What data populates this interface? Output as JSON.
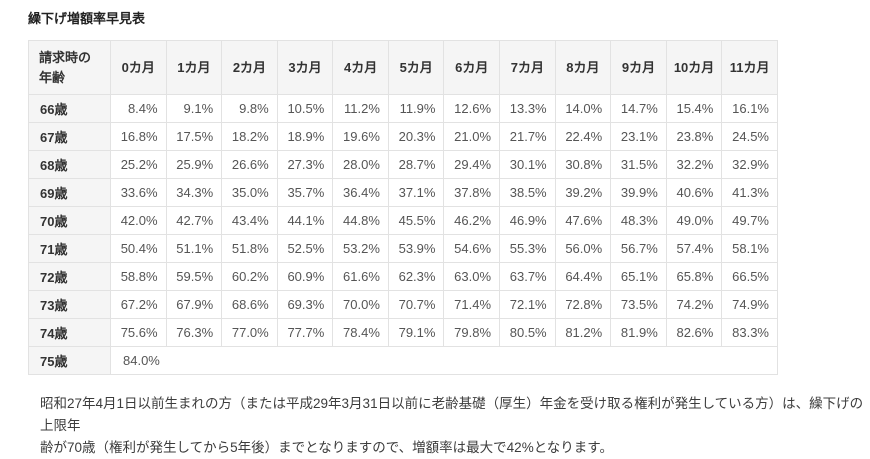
{
  "title": "繰下げ増額率早見表",
  "table": {
    "corner_header": "請求時の年齢",
    "month_headers": [
      "0カ月",
      "1カ月",
      "2カ月",
      "3カ月",
      "4カ月",
      "5カ月",
      "6カ月",
      "7カ月",
      "8カ月",
      "9カ月",
      "10カ月",
      "11カ月"
    ],
    "rows": [
      {
        "age": "66歳",
        "values": [
          "8.4%",
          "9.1%",
          "9.8%",
          "10.5%",
          "11.2%",
          "11.9%",
          "12.6%",
          "13.3%",
          "14.0%",
          "14.7%",
          "15.4%",
          "16.1%"
        ]
      },
      {
        "age": "67歳",
        "values": [
          "16.8%",
          "17.5%",
          "18.2%",
          "18.9%",
          "19.6%",
          "20.3%",
          "21.0%",
          "21.7%",
          "22.4%",
          "23.1%",
          "23.8%",
          "24.5%"
        ]
      },
      {
        "age": "68歳",
        "values": [
          "25.2%",
          "25.9%",
          "26.6%",
          "27.3%",
          "28.0%",
          "28.7%",
          "29.4%",
          "30.1%",
          "30.8%",
          "31.5%",
          "32.2%",
          "32.9%"
        ]
      },
      {
        "age": "69歳",
        "values": [
          "33.6%",
          "34.3%",
          "35.0%",
          "35.7%",
          "36.4%",
          "37.1%",
          "37.8%",
          "38.5%",
          "39.2%",
          "39.9%",
          "40.6%",
          "41.3%"
        ]
      },
      {
        "age": "70歳",
        "values": [
          "42.0%",
          "42.7%",
          "43.4%",
          "44.1%",
          "44.8%",
          "45.5%",
          "46.2%",
          "46.9%",
          "47.6%",
          "48.3%",
          "49.0%",
          "49.7%"
        ]
      },
      {
        "age": "71歳",
        "values": [
          "50.4%",
          "51.1%",
          "51.8%",
          "52.5%",
          "53.2%",
          "53.9%",
          "54.6%",
          "55.3%",
          "56.0%",
          "56.7%",
          "57.4%",
          "58.1%"
        ]
      },
      {
        "age": "72歳",
        "values": [
          "58.8%",
          "59.5%",
          "60.2%",
          "60.9%",
          "61.6%",
          "62.3%",
          "63.0%",
          "63.7%",
          "64.4%",
          "65.1%",
          "65.8%",
          "66.5%"
        ]
      },
      {
        "age": "73歳",
        "values": [
          "67.2%",
          "67.9%",
          "68.6%",
          "69.3%",
          "70.0%",
          "70.7%",
          "71.4%",
          "72.1%",
          "72.8%",
          "73.5%",
          "74.2%",
          "74.9%"
        ]
      },
      {
        "age": "74歳",
        "values": [
          "75.6%",
          "76.3%",
          "77.0%",
          "77.7%",
          "78.4%",
          "79.1%",
          "79.8%",
          "80.5%",
          "81.2%",
          "81.9%",
          "82.6%",
          "83.3%"
        ]
      },
      {
        "age": "75歳",
        "values": [
          "84.0%"
        ],
        "span_rest": true
      }
    ]
  },
  "note": {
    "lines": [
      "昭和27年4月1日以前生まれの方（または平成29年3月31日以前に老齢基礎（厚生）年金を受け取る権利が発生している方）は、繰下げの上限年",
      "齢が70歳（権利が発生してから5年後）までとなりますので、増額率は最大で42%となります。"
    ]
  },
  "colors": {
    "header_bg": "#f5f5f5",
    "border": "#e2e2e2",
    "heading_text": "#333333",
    "cell_text": "#555555",
    "page_bg": "#ffffff"
  }
}
